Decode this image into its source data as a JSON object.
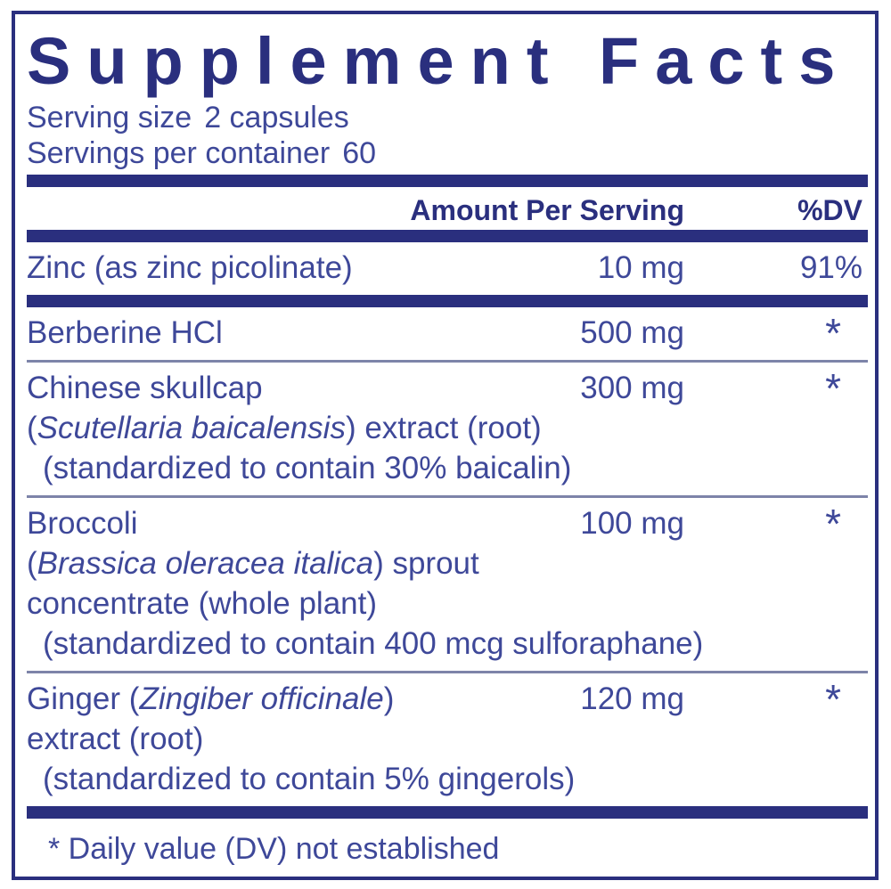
{
  "colors": {
    "navy": "#2a2f7e",
    "text": "#3e4899",
    "rule": "#7d84a9",
    "background": "#ffffff"
  },
  "title": "Supplement Facts",
  "serving_info": [
    {
      "label": "Serving size",
      "value": "2 capsules"
    },
    {
      "label": "Servings per container",
      "value": "60"
    }
  ],
  "table": {
    "amount_header": "Amount Per Serving",
    "dv_header": "%DV",
    "rows": [
      {
        "divider": "none",
        "lines": [
          {
            "indent": false,
            "parts": [
              {
                "text": "Zinc (as zinc picolinate)",
                "italic": false
              }
            ]
          }
        ],
        "amount": "10 mg",
        "dv": "91%"
      },
      {
        "divider": "thick",
        "lines": [
          {
            "indent": false,
            "parts": [
              {
                "text": "Berberine HCl",
                "italic": false
              }
            ]
          }
        ],
        "amount": "500 mg",
        "dv": "*"
      },
      {
        "divider": "thin",
        "lines": [
          {
            "indent": false,
            "parts": [
              {
                "text": "Chinese skullcap",
                "italic": false
              }
            ]
          },
          {
            "indent": false,
            "parts": [
              {
                "text": "(",
                "italic": false
              },
              {
                "text": "Scutellaria baicalensis",
                "italic": true
              },
              {
                "text": ") extract (root)",
                "italic": false
              }
            ]
          },
          {
            "indent": true,
            "parts": [
              {
                "text": "(standardized to contain 30% baicalin)",
                "italic": false
              }
            ]
          }
        ],
        "amount": "300 mg",
        "dv": "*"
      },
      {
        "divider": "thin",
        "lines": [
          {
            "indent": false,
            "parts": [
              {
                "text": "Broccoli",
                "italic": false
              }
            ]
          },
          {
            "indent": false,
            "parts": [
              {
                "text": "(",
                "italic": false
              },
              {
                "text": "Brassica oleracea italica",
                "italic": true
              },
              {
                "text": ") sprout",
                "italic": false
              }
            ]
          },
          {
            "indent": false,
            "parts": [
              {
                "text": "concentrate (whole plant)",
                "italic": false
              }
            ]
          },
          {
            "indent": true,
            "parts": [
              {
                "text": "(standardized to contain 400 mcg sulforaphane)",
                "italic": false
              }
            ]
          }
        ],
        "amount": "100 mg",
        "dv": "*"
      },
      {
        "divider": "thin",
        "lines": [
          {
            "indent": false,
            "parts": [
              {
                "text": "Ginger (",
                "italic": false
              },
              {
                "text": "Zingiber officinale",
                "italic": true
              },
              {
                "text": ")",
                "italic": false
              }
            ]
          },
          {
            "indent": false,
            "parts": [
              {
                "text": "extract (root)",
                "italic": false
              }
            ]
          },
          {
            "indent": true,
            "parts": [
              {
                "text": "(standardized to contain 5% gingerols)",
                "italic": false
              }
            ]
          }
        ],
        "amount": "120 mg",
        "dv": "*"
      }
    ]
  },
  "footnote": "* Daily value (DV) not established"
}
